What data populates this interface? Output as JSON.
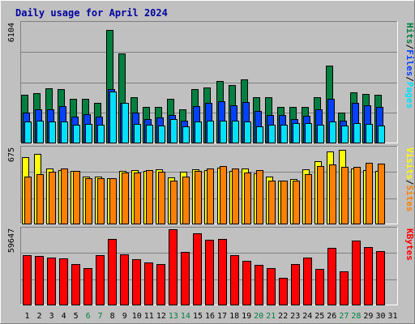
{
  "chart_data": {
    "type": "bar",
    "title": "Daily usage for April 2024",
    "x": [
      "1",
      "2",
      "3",
      "4",
      "5",
      "6",
      "7",
      "8",
      "9",
      "10",
      "11",
      "12",
      "13",
      "14",
      "15",
      "16",
      "17",
      "18",
      "19",
      "20",
      "21",
      "22",
      "23",
      "24",
      "25",
      "26",
      "27",
      "28",
      "29",
      "30",
      "31"
    ],
    "weekend_days": [
      "6",
      "7",
      "13",
      "14",
      "20",
      "21",
      "27",
      "28"
    ],
    "panels": [
      {
        "name": "top",
        "max_label": "6104",
        "ylim": [
          0,
          6104
        ],
        "legend": [
          "Pages",
          "/",
          "Files",
          "/",
          "Hits"
        ],
        "series": [
          {
            "name": "Hits",
            "color": "#008040",
            "values": [
              2400,
              2500,
              2750,
              2700,
              2200,
              2200,
              2000,
              5700,
              4500,
              2300,
              1800,
              1800,
              2200,
              1700,
              2700,
              2800,
              3100,
              2900,
              3200,
              2300,
              2300,
              1800,
              1800,
              1800,
              2300,
              3900,
              1500,
              2550,
              2450,
              2400
            ]
          },
          {
            "name": "Files",
            "color": "#0040ff",
            "values": [
              1500,
              1700,
              1700,
              1850,
              1300,
              1450,
              1300,
              2700,
              2000,
              1500,
              1200,
              1250,
              1400,
              1100,
              1850,
              2000,
              2100,
              1900,
              2050,
              1600,
              1400,
              1400,
              1200,
              1350,
              1700,
              2200,
              1100,
              2000,
              1900,
              1800
            ]
          },
          {
            "name": "Pages",
            "color": "#00e0ff",
            "values": [
              1050,
              1100,
              1050,
              1050,
              900,
              950,
              900,
              2600,
              2000,
              950,
              900,
              850,
              1200,
              800,
              1050,
              1100,
              1100,
              1100,
              1050,
              800,
              900,
              900,
              1000,
              1000,
              900,
              1050,
              850,
              1000,
              950,
              850
            ]
          }
        ]
      },
      {
        "name": "middle",
        "max_label": "675",
        "ylim": [
          0,
          675
        ],
        "legend": [
          "Sites",
          "/",
          "Visits"
        ],
        "series": [
          {
            "name": "Visits",
            "color": "#ffff00",
            "values": [
              585,
              610,
              480,
              470,
              460,
              410,
              410,
              400,
              465,
              470,
              460,
              475,
              405,
              455,
              475,
              470,
              490,
              460,
              480,
              440,
              410,
              380,
              390,
              475,
              550,
              630,
              650,
              480,
              470,
              460
            ]
          },
          {
            "name": "Sites",
            "color": "#ff8000",
            "values": [
              410,
              435,
              455,
              485,
              465,
              400,
              395,
              400,
              450,
              450,
              470,
              455,
              380,
              410,
              460,
              480,
              505,
              485,
              450,
              470,
              375,
              380,
              380,
              430,
              505,
              520,
              500,
              495,
              530,
              525
            ]
          }
        ]
      },
      {
        "name": "bottom",
        "max_label": "59647",
        "ylim": [
          0,
          59647
        ],
        "legend": [
          "KBytes"
        ],
        "series": [
          {
            "name": "KBytes",
            "color": "#ff0000",
            "values": [
              38500,
              37500,
              36500,
              35500,
              31500,
              28000,
              38000,
              51000,
              39000,
              35000,
              32500,
              31500,
              58500,
              41000,
              55500,
              50500,
              51000,
              38000,
              34000,
              30500,
              28500,
              20500,
              31500,
              36500,
              27800,
              44000,
              25600,
              49500,
              44500,
              41500
            ]
          }
        ]
      }
    ]
  }
}
